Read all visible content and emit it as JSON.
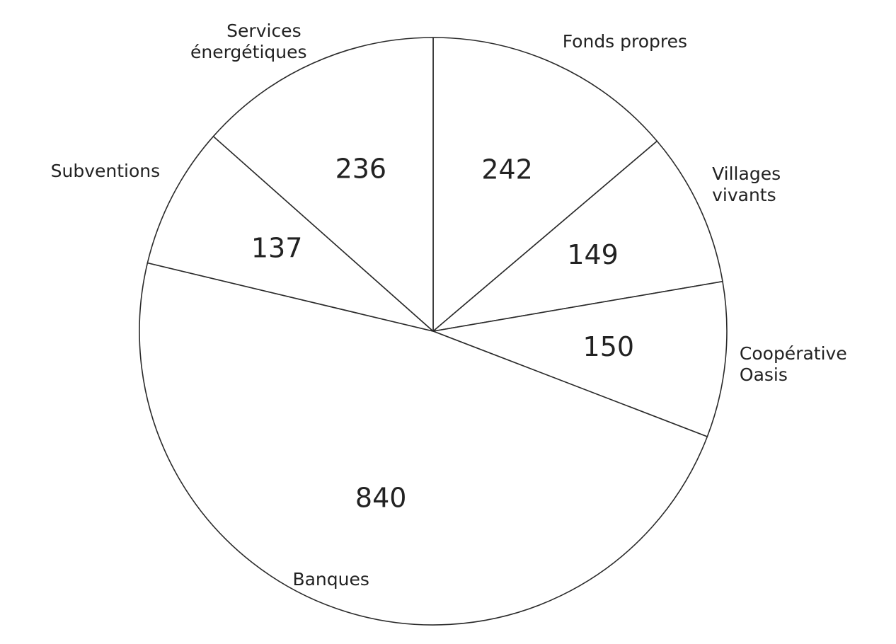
{
  "chart_data": {
    "type": "pie",
    "categories": [
      "Fonds propres",
      "Villages vivants",
      "Coopérative Oasis",
      "Banques",
      "Subventions",
      "Services énergétiques"
    ],
    "values": [
      242,
      149,
      150,
      840,
      137,
      236
    ]
  }
}
